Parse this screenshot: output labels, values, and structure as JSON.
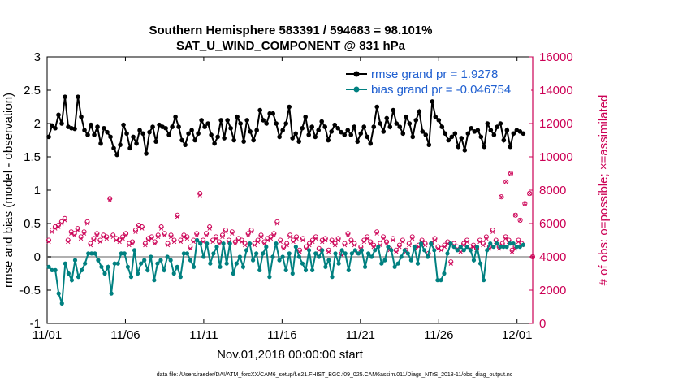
{
  "chart_data": {
    "type": "line",
    "title": "Southern Hemisphere 583391 / 594683 = 98.101%",
    "subtitle": "SAT_U_WIND_COMPONENT @ 831 hPa",
    "xlabel": "Nov.01,2018 00:00:00 start",
    "ylabel": "rmse and bias (model - observation)",
    "y2label": "# of obs: o=possible; ×=assimilated",
    "xlim": [
      0,
      31
    ],
    "ylim": [
      -1,
      3
    ],
    "y2lim": [
      0,
      16000
    ],
    "x_ticks": [
      0,
      5,
      10,
      15,
      20,
      25,
      30
    ],
    "x_tick_labels": [
      "11/01",
      "11/06",
      "11/11",
      "11/16",
      "11/21",
      "11/26",
      "12/01"
    ],
    "y_ticks": [
      -1,
      -0.5,
      0,
      0.5,
      1,
      1.5,
      2,
      2.5,
      3
    ],
    "y_tick_labels": [
      "-1",
      "-0.5",
      "0",
      "0.5",
      "1",
      "1.5",
      "2",
      "2.5",
      "3"
    ],
    "y2_ticks": [
      0,
      2000,
      4000,
      6000,
      8000,
      10000,
      12000,
      14000,
      16000
    ],
    "y2_tick_labels": [
      "0",
      "2000",
      "4000",
      "6000",
      "8000",
      "10000",
      "12000",
      "14000",
      "16000"
    ],
    "footnote": "data file: /Users/raeder/DAI/ATM_forcXX/CAM6_setup/f.e21.FHIST_BGC.f09_025.CAM6assim.011/Diags_NTrS_2018-11/obs_diag_output.nc",
    "colors": {
      "rmse": "#000000",
      "bias": "#008080",
      "obs": "#cc0055",
      "zero_line": "#b0b0b0",
      "legend_text": "#1f5fd0"
    },
    "series": [
      {
        "name": "rmse grand pr = 1.9278",
        "axis": "left",
        "values": [
          1.8,
          1.97,
          1.93,
          2.13,
          2.0,
          2.4,
          1.95,
          1.93,
          1.92,
          2.4,
          2.1,
          1.9,
          1.83,
          1.98,
          1.83,
          1.95,
          1.7,
          1.93,
          1.87,
          1.8,
          1.63,
          1.53,
          1.68,
          1.98,
          1.85,
          1.63,
          1.8,
          1.7,
          1.9,
          1.85,
          1.55,
          1.87,
          1.95,
          1.73,
          1.98,
          1.95,
          1.93,
          1.83,
          1.95,
          2.1,
          1.95,
          1.75,
          1.68,
          1.85,
          1.9,
          1.75,
          1.85,
          2.05,
          1.95,
          2.0,
          1.83,
          1.7,
          1.8,
          2.05,
          1.78,
          2.05,
          1.93,
          1.75,
          2.1,
          2.0,
          1.73,
          2.05,
          1.88,
          1.75,
          1.9,
          2.2,
          2.05,
          2.0,
          2.15,
          2.15,
          2.0,
          1.8,
          1.9,
          2.0,
          2.25,
          1.78,
          1.85,
          1.73,
          1.93,
          2.1,
          1.83,
          1.95,
          1.8,
          1.9,
          2.03,
          1.95,
          1.75,
          1.88,
          1.98,
          1.93,
          1.87,
          1.83,
          1.9,
          1.83,
          1.95,
          1.73,
          1.85,
          1.95,
          1.8,
          1.7,
          1.95,
          2.25,
          2.0,
          1.88,
          2.08,
          1.95,
          2.2,
          2.0,
          1.95,
          1.85,
          2.1,
          2.0,
          1.8,
          2.05,
          2.18,
          1.88,
          1.83,
          1.68,
          2.33,
          2.1,
          2.05,
          1.95,
          1.85,
          1.75,
          1.8,
          1.85,
          1.65,
          1.78,
          1.6,
          1.85,
          1.93,
          1.88,
          1.9,
          1.8,
          1.65,
          2.0,
          1.9,
          1.83,
          1.95,
          2.0,
          1.75,
          1.9,
          1.65,
          1.85,
          1.9,
          1.88,
          1.85
        ]
      },
      {
        "name": "bias grand pr = -0.046754",
        "axis": "left",
        "values": [
          -0.15,
          -0.2,
          -0.2,
          -0.55,
          -0.7,
          -0.1,
          -0.25,
          -0.35,
          -0.05,
          -0.3,
          -0.2,
          -0.1,
          0.05,
          0.05,
          0.05,
          -0.05,
          -0.15,
          -0.25,
          -0.15,
          -0.55,
          -0.1,
          -0.1,
          0.05,
          0.05,
          -0.15,
          -0.3,
          0.1,
          -0.25,
          -0.1,
          -0.05,
          -0.2,
          0.0,
          -0.35,
          -0.1,
          -0.05,
          -0.2,
          0.0,
          -0.05,
          -0.25,
          -0.15,
          -0.3,
          0.05,
          0.05,
          -0.05,
          -0.15,
          0.25,
          0.2,
          0.0,
          0.2,
          -0.1,
          0.05,
          0.15,
          -0.15,
          0.2,
          -0.1,
          0.2,
          -0.25,
          -0.1,
          0.0,
          -0.15,
          0.1,
          0.2,
          -0.05,
          0.05,
          -0.2,
          0.05,
          0.15,
          -0.3,
          0.0,
          0.2,
          -0.05,
          0.0,
          -0.2,
          0.05,
          -0.25,
          0.15,
          0.0,
          -0.1,
          -0.2,
          0.1,
          -0.2,
          0.05,
          0.0,
          0.1,
          -0.15,
          -0.05,
          -0.3,
          0.05,
          -0.1,
          0.1,
          0.05,
          -0.2,
          0.05,
          0.1,
          0.05,
          0.1,
          -0.15,
          0.05,
          0.0,
          0.1,
          0.15,
          -0.1,
          -0.05,
          0.15,
          0.1,
          -0.15,
          -0.1,
          0.0,
          0.1,
          0.05,
          -0.05,
          0.15,
          -0.1,
          0.2,
          0.1,
          0.0,
          0.2,
          0.1,
          -0.35,
          -0.35,
          -0.25,
          0.05,
          0.2,
          0.15,
          0.1,
          0.15,
          0.1,
          0.15,
          0.1,
          -0.05,
          0.15,
          -0.1,
          -0.35,
          0.1,
          0.2,
          0.15,
          0.2,
          0.15,
          0.15,
          0.15,
          0.2,
          0.2,
          0.15,
          0.15,
          0.18
        ]
      },
      {
        "name": "# of obs possible",
        "axis": "right",
        "marker": "circle",
        "values": [
          5000,
          5600,
          5800,
          5900,
          6100,
          6300,
          5000,
          5500,
          5400,
          5700,
          5200,
          5500,
          6100,
          4800,
          5100,
          5400,
          5000,
          5300,
          5200,
          7500,
          5300,
          5100,
          5000,
          5200,
          5400,
          4800,
          4900,
          5600,
          5900,
          5800,
          4800,
          5100,
          5200,
          4900,
          5300,
          5800,
          5400,
          4800,
          5300,
          5000,
          6500,
          5000,
          5300,
          5200,
          4600,
          5000,
          5400,
          7800,
          5000,
          5400,
          5800,
          5000,
          5200,
          4900,
          5300,
          5600,
          5000,
          5500,
          4900,
          5100,
          5000,
          4800,
          5400,
          5600,
          4800,
          5000,
          5300,
          4900,
          5100,
          5200,
          5400,
          6100,
          5000,
          4600,
          4800,
          5300,
          5000,
          5200,
          4400,
          5100,
          4600,
          4800,
          5000,
          5200,
          4500,
          5000,
          5100,
          4400,
          5000,
          4800,
          5100,
          4200,
          4800,
          5400,
          5000,
          4800,
          4300,
          4600,
          5000,
          5200,
          4900,
          4700,
          5500,
          4800,
          5200,
          4900,
          4500,
          5100,
          4400,
          4700,
          5000,
          4400,
          4800,
          5200,
          4600,
          4700,
          5000,
          4800,
          4200,
          4800,
          5100,
          4600,
          4500,
          4700,
          4900,
          3700,
          4800,
          4600,
          4400,
          4800,
          5000,
          4600,
          4700,
          4500,
          5000,
          4800,
          5200,
          4600,
          5600,
          5000,
          4600,
          4800,
          5200,
          5000,
          4400,
          4600,
          5000,
          4800
        ]
      },
      {
        "name": "# of obs assimilated",
        "axis": "right",
        "marker": "x",
        "values": [
          4900,
          5500,
          5700,
          5800,
          6000,
          6200,
          4900,
          5400,
          5300,
          5600,
          5100,
          5400,
          6000,
          4700,
          5000,
          5300,
          4900,
          5200,
          5100,
          7400,
          5200,
          5000,
          4900,
          5100,
          5300,
          4700,
          4800,
          5500,
          5800,
          5700,
          4700,
          5000,
          5100,
          4800,
          5200,
          5700,
          5300,
          4700,
          5200,
          4900,
          6400,
          4900,
          5200,
          5100,
          4500,
          4900,
          5300,
          7700,
          4900,
          5300,
          5700,
          4900,
          5100,
          4800,
          5200,
          5500,
          4900,
          5400,
          4800,
          5000,
          4900,
          4700,
          5300,
          5500,
          4700,
          4900,
          5200,
          4800,
          5000,
          5100,
          5300,
          6000,
          4900,
          4500,
          4700,
          5200,
          4900,
          5100,
          4300,
          5000,
          4500,
          4700,
          4900,
          5100,
          4400,
          4900,
          5000,
          4300,
          4900,
          4700,
          5000,
          4100,
          4700,
          5300,
          4900,
          4700,
          4200,
          4500,
          4900,
          5100,
          4800,
          4600,
          5400,
          4700,
          5100,
          4800,
          4400,
          5000,
          4300,
          4600,
          4900,
          4300,
          4700,
          5100,
          4500,
          4600,
          4900,
          4700,
          4100,
          4700,
          5000,
          4500,
          4400,
          4600,
          4800,
          3600,
          4700,
          4500,
          4300,
          4700,
          4900,
          4500,
          4600,
          4400,
          4900,
          4700,
          5100,
          4500,
          5500,
          4900,
          4500,
          4700,
          5100,
          4900,
          4300,
          4500,
          4900,
          4700
        ]
      }
    ],
    "obs_late_extra": {
      "x": [
        29.0,
        29.3,
        29.6,
        29.9,
        30.2,
        30.5,
        30.8,
        31.0
      ],
      "values": [
        7600,
        8500,
        9000,
        6500,
        6200,
        7200,
        7800,
        4000
      ]
    }
  }
}
